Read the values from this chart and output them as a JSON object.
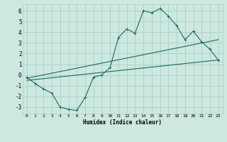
{
  "xlabel": "Humidex (Indice chaleur)",
  "ylabel": "",
  "background_color": "#cce8e0",
  "grid_color": "#aacfc7",
  "line_color": "#1a6b5e",
  "xlim": [
    -0.5,
    23.5
  ],
  "ylim": [
    -3.6,
    6.6
  ],
  "xticks": [
    0,
    1,
    2,
    3,
    4,
    5,
    6,
    7,
    8,
    9,
    10,
    11,
    12,
    13,
    14,
    15,
    16,
    17,
    18,
    19,
    20,
    21,
    22,
    23
  ],
  "yticks": [
    -3,
    -2,
    -1,
    0,
    1,
    2,
    3,
    4,
    5,
    6
  ],
  "line1_x": [
    0,
    1,
    2,
    3,
    4,
    5,
    6,
    7,
    8,
    9,
    10,
    11,
    12,
    13,
    14,
    15,
    16,
    17,
    18,
    19,
    20,
    21,
    22,
    23
  ],
  "line1_y": [
    -0.2,
    -0.8,
    -1.3,
    -1.7,
    -3.0,
    -3.2,
    -3.3,
    -2.1,
    -0.2,
    0.0,
    0.7,
    3.5,
    4.3,
    3.9,
    6.0,
    5.8,
    6.2,
    5.5,
    4.6,
    3.3,
    4.1,
    3.1,
    2.4,
    1.4
  ],
  "line2_x": [
    0,
    23
  ],
  "line2_y": [
    -0.5,
    1.4
  ],
  "line3_x": [
    0,
    23
  ],
  "line3_y": [
    -0.3,
    3.3
  ],
  "marker_size": 3
}
